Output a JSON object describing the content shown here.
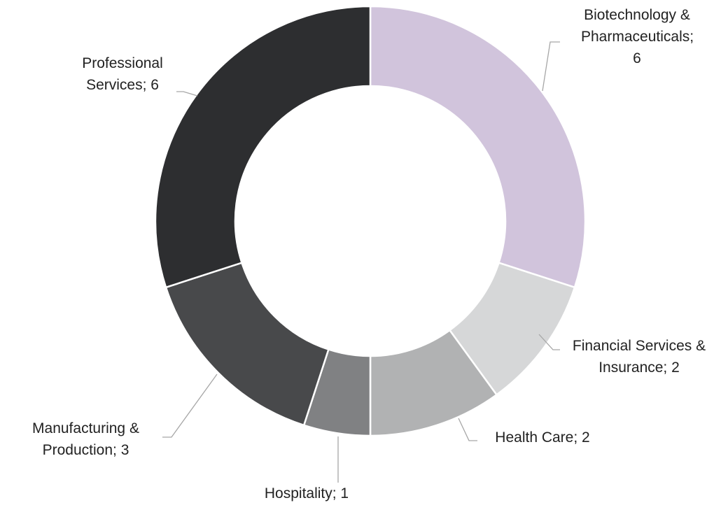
{
  "chart_data": {
    "type": "donut",
    "categories": [
      "Biotechnology & Pharmaceuticals",
      "Financial Services & Insurance",
      "Health Care",
      "Hospitality",
      "Manufacturing & Production",
      "Professional Services"
    ],
    "values": [
      6,
      2,
      2,
      1,
      3,
      6
    ],
    "value_labels": [
      "Biotechnology & Pharmaceuticals; 6",
      "Financial Services & Insurance; 2",
      "Health Care; 2",
      "Hospitality; 1",
      "Manufacturing & Production; 3",
      "Professional Services; 6"
    ],
    "colors": [
      "#d1c4dc",
      "#d6d7d8",
      "#b1b2b3",
      "#808183",
      "#48494b",
      "#2d2e30"
    ]
  }
}
